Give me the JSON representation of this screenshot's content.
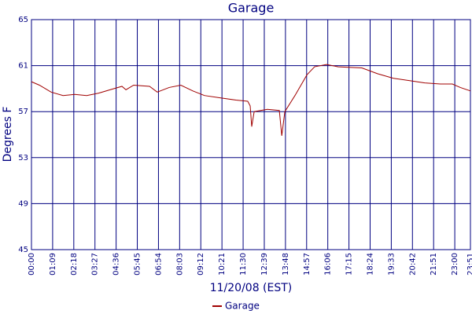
{
  "chart_data": {
    "type": "line",
    "title": "Garage",
    "x_label": "11/20/08 (EST)",
    "y_label": "Degrees F",
    "xlim": [
      0,
      1431
    ],
    "xticks": [
      {
        "value": 0,
        "label": "00:00"
      },
      {
        "value": 69,
        "label": "01:09"
      },
      {
        "value": 138,
        "label": "02:18"
      },
      {
        "value": 207,
        "label": "03:27"
      },
      {
        "value": 276,
        "label": "04:36"
      },
      {
        "value": 345,
        "label": "05:45"
      },
      {
        "value": 414,
        "label": "06:54"
      },
      {
        "value": 483,
        "label": "08:03"
      },
      {
        "value": 552,
        "label": "09:12"
      },
      {
        "value": 621,
        "label": "10:21"
      },
      {
        "value": 690,
        "label": "11:30"
      },
      {
        "value": 759,
        "label": "12:39"
      },
      {
        "value": 828,
        "label": "13:48"
      },
      {
        "value": 897,
        "label": "14:57"
      },
      {
        "value": 966,
        "label": "16:06"
      },
      {
        "value": 1035,
        "label": "17:15"
      },
      {
        "value": 1104,
        "label": "18:24"
      },
      {
        "value": 1173,
        "label": "19:33"
      },
      {
        "value": 1242,
        "label": "20:42"
      },
      {
        "value": 1311,
        "label": "21:51"
      },
      {
        "value": 1380,
        "label": "23:00"
      },
      {
        "value": 1431,
        "label": "23:51"
      }
    ],
    "ylim": [
      45,
      65
    ],
    "yticks": [
      45,
      49,
      53,
      57,
      61,
      65
    ],
    "grid": true,
    "legend": "bottom",
    "x": [
      0,
      26,
      64,
      103,
      141,
      180,
      218,
      256,
      295,
      308,
      333,
      385,
      410,
      449,
      487,
      526,
      564,
      615,
      667,
      705,
      713,
      718,
      726,
      769,
      808,
      816,
      826,
      859,
      898,
      923,
      962,
      1000,
      1077,
      1128,
      1180,
      1231,
      1282,
      1333,
      1372,
      1398,
      1431
    ],
    "series": [
      {
        "name": "Garage",
        "color": "#a00000",
        "values": [
          59.6,
          59.3,
          58.7,
          58.4,
          58.5,
          58.4,
          58.6,
          58.9,
          59.2,
          58.9,
          59.3,
          59.2,
          58.7,
          59.1,
          59.3,
          58.8,
          58.4,
          58.2,
          58.0,
          57.9,
          57.5,
          55.7,
          57.0,
          57.2,
          57.1,
          54.9,
          57.0,
          58.4,
          60.2,
          60.9,
          61.1,
          60.9,
          60.8,
          60.3,
          59.9,
          59.7,
          59.5,
          59.4,
          59.4,
          59.1,
          58.8
        ]
      }
    ]
  }
}
